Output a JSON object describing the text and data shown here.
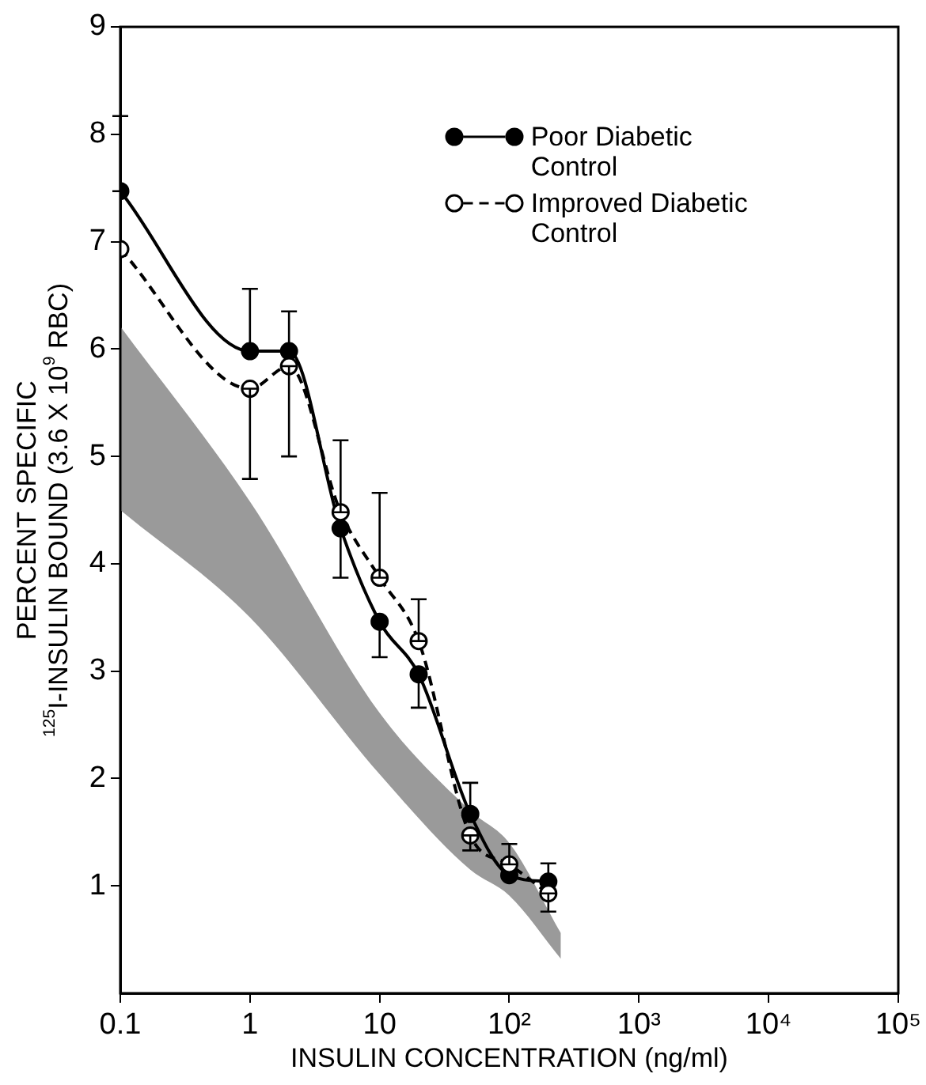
{
  "chart_data": {
    "type": "line",
    "xlabel": "INSULIN CONCENTRATION (ng/ml)",
    "ylabel": "PERCENT SPECIFIC\n$^{125}$I-INSULIN BOUND (3.6 X 10$^{9}$ RBC)",
    "log": "x",
    "xlim": [
      0.1,
      100000
    ],
    "xticks": [
      0.1,
      1,
      10,
      {
        "value": 100,
        "label": "10²"
      },
      {
        "value": 1000,
        "label": "10³"
      },
      {
        "value": 10000,
        "label": "10⁴"
      },
      {
        "value": 100000,
        "label": "10⁵"
      }
    ],
    "ylim": [
      0,
      9
    ],
    "yticks": [
      1,
      2,
      3,
      4,
      5,
      6,
      7,
      8,
      9
    ],
    "grid": false,
    "legend": "top right",
    "marker": "circle",
    "x": [
      0.1,
      1,
      2,
      5,
      10,
      20,
      50,
      100,
      200
    ],
    "series": [
      {
        "name": "Poor Diabetic Control",
        "color": "#000000",
        "line_style": "solid",
        "values": [
          7.47,
          5.98,
          5.98,
          4.33,
          3.46,
          2.97,
          1.67,
          1.1,
          1.04
        ],
        "errors": [
          [
            7.47,
            8.17
          ],
          [
            5.98,
            6.56
          ],
          [
            5.98,
            6.35
          ],
          [
            3.87,
            4.33
          ],
          [
            3.13,
            3.46
          ],
          [
            2.66,
            2.97
          ],
          [
            1.67,
            1.96
          ],
          [
            1.07,
            1.1
          ],
          [
            1.04,
            1.21
          ]
        ]
      },
      {
        "name": "Improved Diabetic Control",
        "color": "#000000",
        "line_style": "dashed",
        "values": [
          6.93,
          5.63,
          5.84,
          4.48,
          3.87,
          3.28,
          1.47,
          1.2,
          0.93
        ],
        "errors": [
          null,
          [
            4.79,
            5.63
          ],
          [
            5.0,
            5.84
          ],
          [
            4.48,
            5.15
          ],
          [
            3.87,
            4.66
          ],
          [
            3.28,
            3.67
          ],
          [
            1.33,
            1.47
          ],
          [
            1.2,
            1.39
          ],
          [
            0.76,
            0.93
          ]
        ]
      },
      {
        "type": "line",
        "color": "#9a9a9a",
        "x": [
          0.1,
          1,
          10,
          50,
          100,
          250
        ],
        "values": [
          null,
          null,
          null,
          null,
          null,
          null
        ],
        "upper": [
          6.21,
          4.58,
          2.61,
          1.7,
          1.4,
          0.56
        ],
        "lower": [
          4.5,
          3.5,
          2.04,
          1.15,
          0.91,
          0.32
        ]
      }
    ]
  }
}
